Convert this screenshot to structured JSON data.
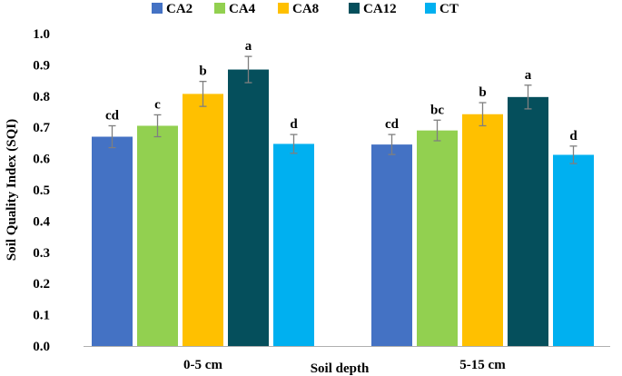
{
  "chart_data": {
    "type": "bar",
    "title": "",
    "xlabel": "Soil depth",
    "ylabel": "Soil Quality Index (SQI)",
    "ylim": [
      0,
      1.0
    ],
    "yticks": [
      "0.0",
      "0.1",
      "0.2",
      "0.3",
      "0.4",
      "0.5",
      "0.6",
      "0.7",
      "0.8",
      "0.9",
      "1.0"
    ],
    "grid": false,
    "legend_position": "top",
    "categories": [
      "0-5 cm",
      "5-15 cm"
    ],
    "series": [
      {
        "name": "CA2",
        "color": "#4472C4",
        "values": [
          0.67,
          0.645
        ],
        "errors": [
          0.035,
          0.032
        ],
        "letters": [
          "cd",
          "cd"
        ]
      },
      {
        "name": "CA4",
        "color": "#92D050",
        "values": [
          0.705,
          0.69
        ],
        "errors": [
          0.035,
          0.033
        ],
        "letters": [
          "c",
          "bc"
        ]
      },
      {
        "name": "CA8",
        "color": "#FFC000",
        "values": [
          0.807,
          0.742
        ],
        "errors": [
          0.04,
          0.037
        ],
        "letters": [
          "b",
          "b"
        ]
      },
      {
        "name": "CA12",
        "color": "#054F5C",
        "values": [
          0.885,
          0.797
        ],
        "errors": [
          0.042,
          0.038
        ],
        "letters": [
          "a",
          "a"
        ]
      },
      {
        "name": "CT",
        "color": "#00B0F0",
        "values": [
          0.647,
          0.612
        ],
        "errors": [
          0.03,
          0.028
        ],
        "letters": [
          "d",
          "d"
        ]
      }
    ]
  }
}
